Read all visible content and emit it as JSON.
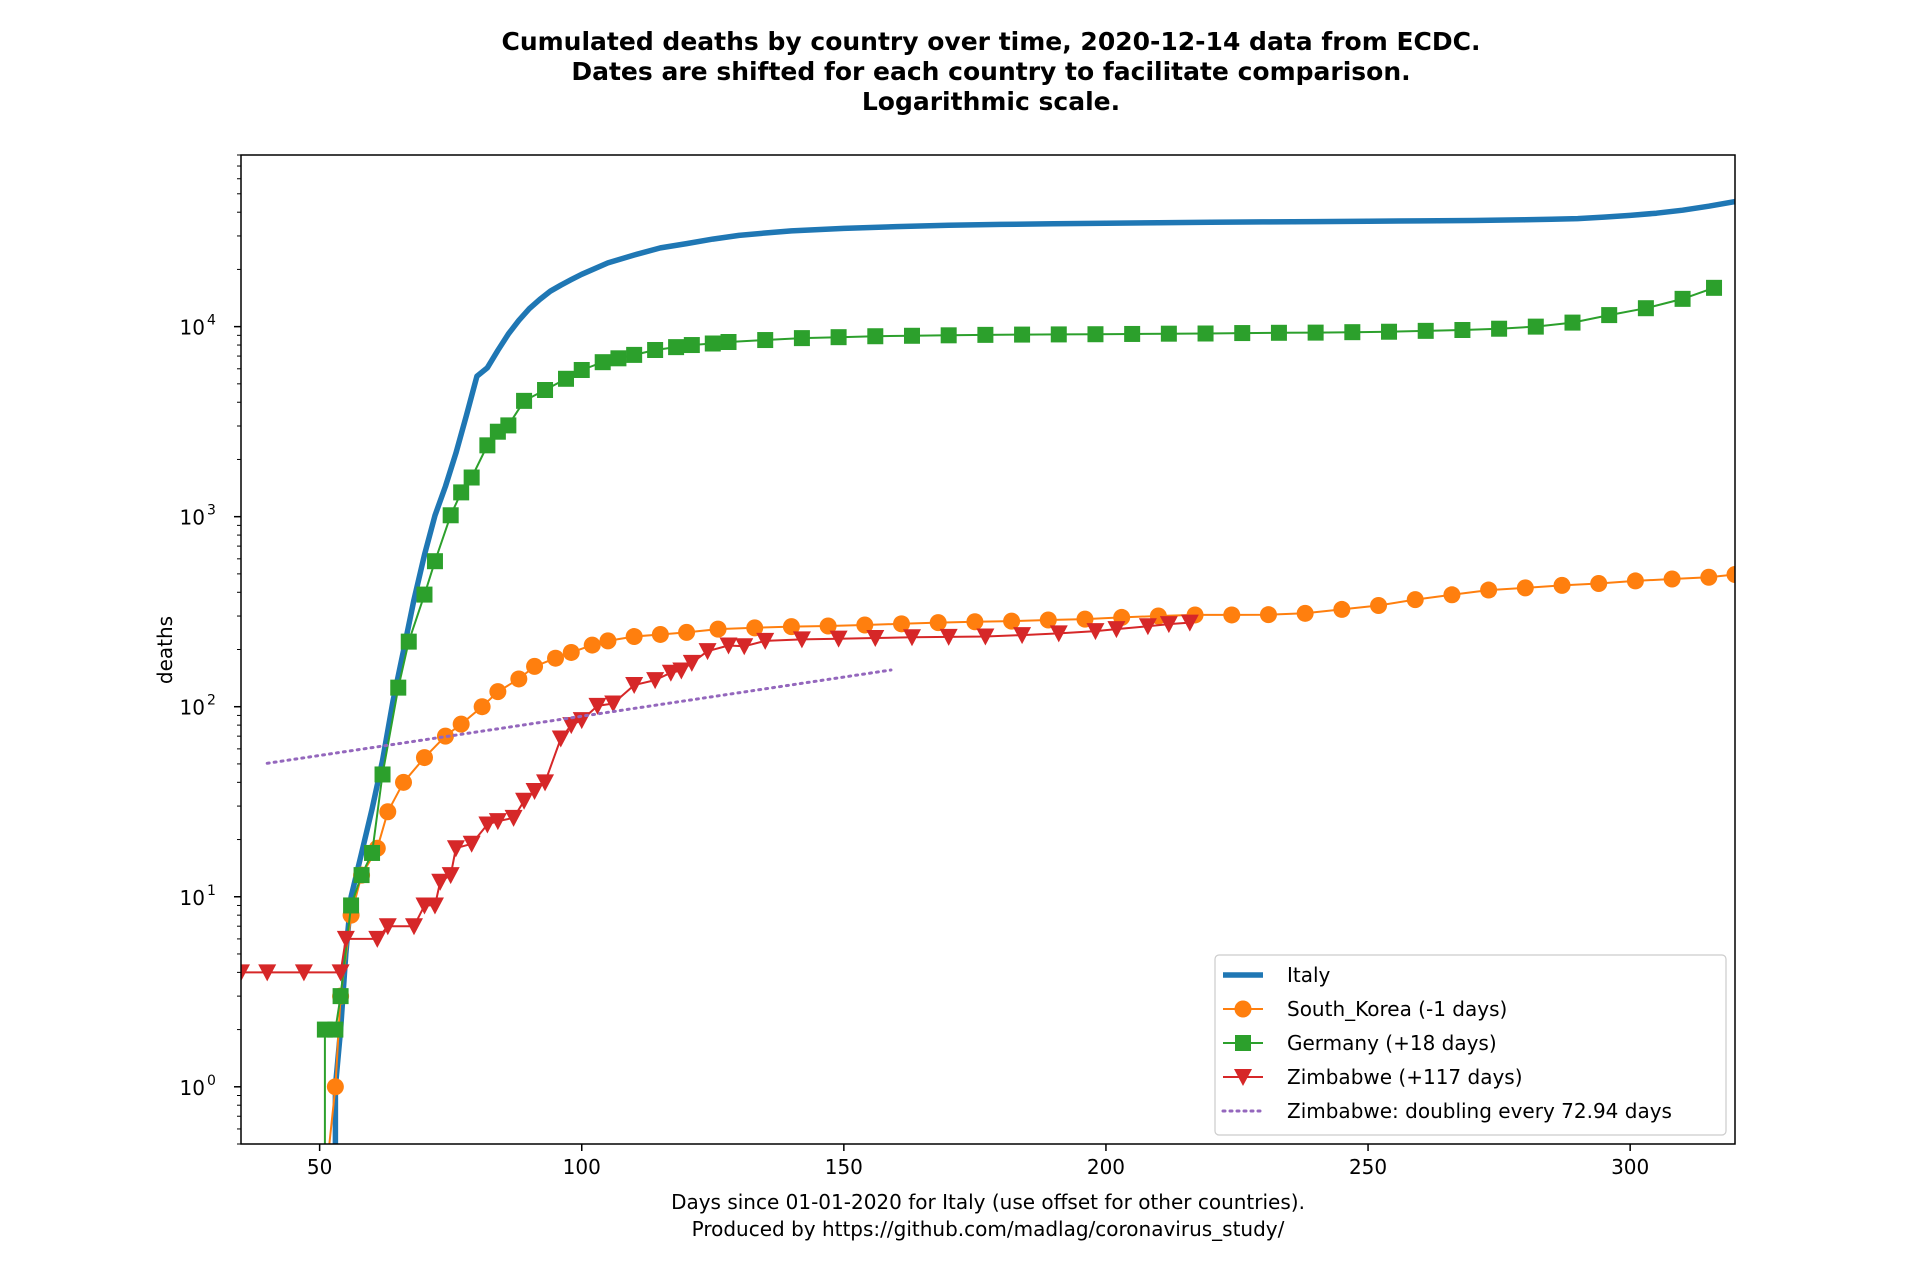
{
  "chart_data": {
    "type": "line",
    "title_lines": [
      "Cumulated deaths by country over time, 2020-12-14 data from ECDC.",
      "Dates are shifted for each country to facilitate comparison.",
      "Logarithmic scale."
    ],
    "xlabel_lines": [
      "Days since 01-01-2020 for Italy (use offset for other countries).",
      "Produced by https://github.com/madlag/coronavirus_study/"
    ],
    "ylabel": "deaths",
    "y_scale": "log",
    "xlim": [
      35,
      320
    ],
    "ylim": [
      0.5,
      80000
    ],
    "x_ticks": [
      50,
      100,
      150,
      200,
      250,
      300
    ],
    "x_tick_labels": [
      "50",
      "100",
      "150",
      "200",
      "250",
      "300"
    ],
    "y_ticks": [
      1,
      10,
      100,
      1000,
      10000
    ],
    "y_tick_labels": [
      {
        "base": "10",
        "exp": "0"
      },
      {
        "base": "10",
        "exp": "1"
      },
      {
        "base": "10",
        "exp": "2"
      },
      {
        "base": "10",
        "exp": "3"
      },
      {
        "base": "10",
        "exp": "4"
      }
    ],
    "legend_position": "lower-right",
    "series": [
      {
        "name": "Italy",
        "color": "#1f77b4",
        "marker": "none",
        "points": [
          [
            53,
            0.3
          ],
          [
            53,
            1
          ],
          [
            54,
            2
          ],
          [
            55,
            5
          ],
          [
            56,
            10
          ],
          [
            58,
            17
          ],
          [
            60,
            29
          ],
          [
            62,
            52
          ],
          [
            64,
            107
          ],
          [
            66,
            197
          ],
          [
            68,
            366
          ],
          [
            70,
            631
          ],
          [
            72,
            1016
          ],
          [
            74,
            1441
          ],
          [
            76,
            2158
          ],
          [
            78,
            3405
          ],
          [
            80,
            5476
          ],
          [
            82,
            6077
          ],
          [
            84,
            7503
          ],
          [
            86,
            9134
          ],
          [
            88,
            10779
          ],
          [
            90,
            12428
          ],
          [
            92,
            13915
          ],
          [
            94,
            15362
          ],
          [
            96,
            16523
          ],
          [
            98,
            17669
          ],
          [
            100,
            18849
          ],
          [
            105,
            21645
          ],
          [
            110,
            23822
          ],
          [
            115,
            25969
          ],
          [
            120,
            27359
          ],
          [
            125,
            28884
          ],
          [
            130,
            30201
          ],
          [
            135,
            31106
          ],
          [
            140,
            31908
          ],
          [
            150,
            32877
          ],
          [
            160,
            33601
          ],
          [
            170,
            34142
          ],
          [
            180,
            34514
          ],
          [
            190,
            34744
          ],
          [
            200,
            35000
          ],
          [
            210,
            35181
          ],
          [
            220,
            35396
          ],
          [
            230,
            35553
          ],
          [
            240,
            35692
          ],
          [
            250,
            35875
          ],
          [
            260,
            36000
          ],
          [
            270,
            36166
          ],
          [
            280,
            36474
          ],
          [
            285,
            36705
          ],
          [
            290,
            37000
          ],
          [
            295,
            37700
          ],
          [
            300,
            38500
          ],
          [
            305,
            39500
          ],
          [
            310,
            41000
          ],
          [
            315,
            43000
          ],
          [
            320,
            45500
          ]
        ]
      },
      {
        "name": "South_Korea (-1 days)",
        "color": "#ff7f0e",
        "marker": "circle",
        "points": [
          [
            51,
            0.3
          ],
          [
            53,
            1
          ],
          [
            54,
            3
          ],
          [
            56,
            8
          ],
          [
            58,
            13
          ],
          [
            61,
            18
          ],
          [
            63,
            28
          ],
          [
            66,
            40
          ],
          [
            70,
            54
          ],
          [
            74,
            70
          ],
          [
            77,
            81
          ],
          [
            81,
            100
          ],
          [
            84,
            120
          ],
          [
            88,
            140
          ],
          [
            91,
            163
          ],
          [
            95,
            180
          ],
          [
            98,
            193
          ],
          [
            102,
            211
          ],
          [
            105,
            222
          ],
          [
            110,
            234
          ],
          [
            115,
            240
          ],
          [
            120,
            246
          ],
          [
            126,
            256
          ],
          [
            133,
            260
          ],
          [
            140,
            264
          ],
          [
            147,
            266
          ],
          [
            154,
            269
          ],
          [
            161,
            273
          ],
          [
            168,
            277
          ],
          [
            175,
            280
          ],
          [
            182,
            282
          ],
          [
            189,
            286
          ],
          [
            196,
            289
          ],
          [
            203,
            295
          ],
          [
            210,
            300
          ],
          [
            217,
            304
          ],
          [
            224,
            304
          ],
          [
            231,
            305
          ],
          [
            238,
            310
          ],
          [
            245,
            325
          ],
          [
            252,
            341
          ],
          [
            259,
            366
          ],
          [
            266,
            388
          ],
          [
            273,
            411
          ],
          [
            280,
            422
          ],
          [
            287,
            435
          ],
          [
            294,
            445
          ],
          [
            301,
            459
          ],
          [
            308,
            470
          ],
          [
            315,
            480
          ],
          [
            320,
            496
          ]
        ]
      },
      {
        "name": "Germany (+18 days)",
        "color": "#2ca02c",
        "marker": "square",
        "points": [
          [
            51,
            0.3
          ],
          [
            51,
            2
          ],
          [
            53,
            2
          ],
          [
            54,
            3
          ],
          [
            56,
            9
          ],
          [
            58,
            13
          ],
          [
            60,
            17
          ],
          [
            62,
            44
          ],
          [
            65,
            126
          ],
          [
            67,
            220
          ],
          [
            70,
            389
          ],
          [
            72,
            583
          ],
          [
            75,
            1017
          ],
          [
            77,
            1342
          ],
          [
            79,
            1607
          ],
          [
            82,
            2373
          ],
          [
            84,
            2799
          ],
          [
            86,
            3022
          ],
          [
            89,
            4068
          ],
          [
            93,
            4640
          ],
          [
            97,
            5315
          ],
          [
            100,
            5913
          ],
          [
            104,
            6500
          ],
          [
            107,
            6812
          ],
          [
            110,
            7100
          ],
          [
            114,
            7534
          ],
          [
            118,
            7800
          ],
          [
            121,
            8000
          ],
          [
            125,
            8150
          ],
          [
            128,
            8300
          ],
          [
            135,
            8500
          ],
          [
            142,
            8700
          ],
          [
            149,
            8800
          ],
          [
            156,
            8900
          ],
          [
            163,
            8950
          ],
          [
            170,
            9000
          ],
          [
            177,
            9050
          ],
          [
            184,
            9080
          ],
          [
            191,
            9100
          ],
          [
            198,
            9120
          ],
          [
            205,
            9150
          ],
          [
            212,
            9180
          ],
          [
            219,
            9200
          ],
          [
            226,
            9250
          ],
          [
            233,
            9280
          ],
          [
            240,
            9300
          ],
          [
            247,
            9350
          ],
          [
            254,
            9400
          ],
          [
            261,
            9500
          ],
          [
            268,
            9600
          ],
          [
            275,
            9750
          ],
          [
            282,
            10000
          ],
          [
            289,
            10500
          ],
          [
            296,
            11500
          ],
          [
            303,
            12500
          ],
          [
            310,
            14000
          ],
          [
            316,
            16000
          ]
        ]
      },
      {
        "name": "Zimbabwe (+117 days)",
        "color": "#d62728",
        "marker": "triangle-down",
        "points": [
          [
            35,
            4
          ],
          [
            40,
            4
          ],
          [
            47,
            4
          ],
          [
            54,
            4
          ],
          [
            55,
            6
          ],
          [
            61,
            6
          ],
          [
            63,
            7
          ],
          [
            68,
            7
          ],
          [
            70,
            9
          ],
          [
            72,
            9
          ],
          [
            73,
            12
          ],
          [
            75,
            13
          ],
          [
            76,
            18
          ],
          [
            79,
            19
          ],
          [
            82,
            24
          ],
          [
            84,
            25
          ],
          [
            87,
            26
          ],
          [
            89,
            32
          ],
          [
            91,
            36
          ],
          [
            93,
            40
          ],
          [
            96,
            68
          ],
          [
            98,
            80
          ],
          [
            100,
            85
          ],
          [
            103,
            101
          ],
          [
            106,
            104
          ],
          [
            110,
            130
          ],
          [
            114,
            138
          ],
          [
            117,
            151
          ],
          [
            119,
            155
          ],
          [
            121,
            170
          ],
          [
            124,
            196
          ],
          [
            128,
            210
          ],
          [
            131,
            208
          ],
          [
            135,
            222
          ],
          [
            142,
            226
          ],
          [
            149,
            228
          ],
          [
            156,
            230
          ],
          [
            163,
            232
          ],
          [
            170,
            233
          ],
          [
            177,
            234
          ],
          [
            184,
            238
          ],
          [
            191,
            243
          ],
          [
            198,
            250
          ],
          [
            202,
            256
          ],
          [
            208,
            265
          ],
          [
            212,
            272
          ],
          [
            216,
            277
          ]
        ]
      },
      {
        "name": "Zimbabwe: doubling every 72.94 days",
        "color": "#9467bd",
        "marker": "dotted",
        "points": [
          [
            40,
            50.4
          ],
          [
            159,
            156
          ]
        ]
      }
    ]
  }
}
